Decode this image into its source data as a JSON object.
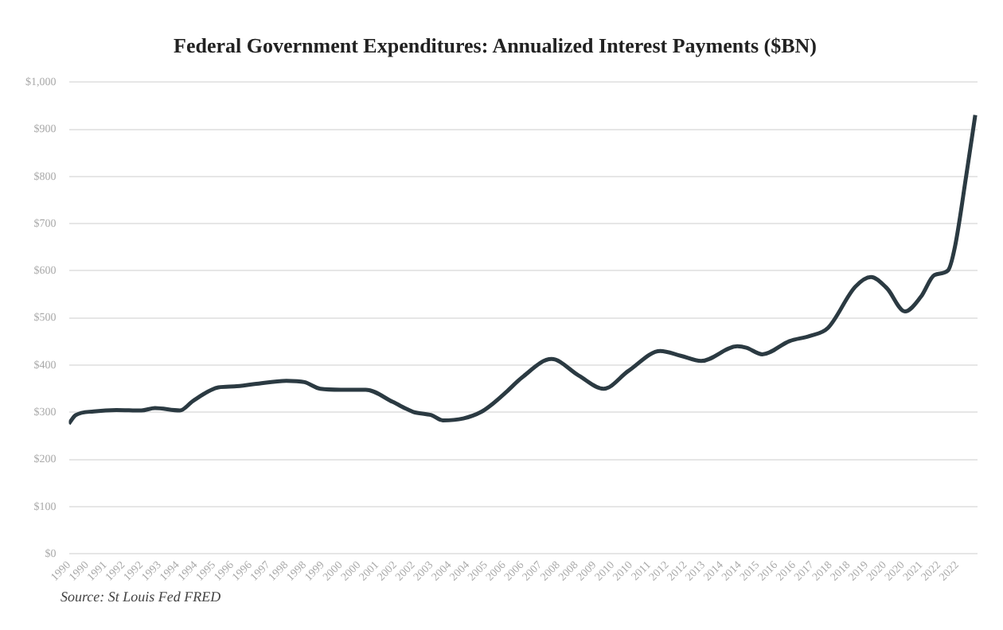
{
  "chart_data": {
    "type": "line",
    "title": "Federal Government Expenditures: Annualized Interest Payments ($BN)",
    "annotations": [
      "Source: St Louis Fed FRED"
    ],
    "x": [
      "1990-01",
      "1990-04",
      "1990-12",
      "1991-10",
      "1992-09",
      "1993-03",
      "1994-02",
      "1994-08",
      "1995-07",
      "1996-02",
      "1996-11",
      "1998-01",
      "1998-09",
      "1999-04",
      "2000-01",
      "2000-12",
      "2001-12",
      "2002-09",
      "2003-05",
      "2003-10",
      "2004-07",
      "2005-03",
      "2005-08",
      "2006-02",
      "2006-09",
      "2007-10",
      "2008-10",
      "2009-09",
      "2010-08",
      "2011-10",
      "2012-07",
      "2013-04",
      "2014-08",
      "2014-12",
      "2015-07",
      "2016-07",
      "2017-04",
      "2017-12",
      "2018-12",
      "2019-07",
      "2020-02",
      "2020-10",
      "2021-05",
      "2021-11",
      "2022-05",
      "2022-08",
      "2023-01",
      "2023-05"
    ],
    "series": [
      {
        "color": "#2b3a42",
        "values": [
          276,
          294,
          302,
          305,
          304,
          309,
          304,
          325,
          353,
          355,
          360,
          367,
          364,
          350,
          348,
          348,
          322,
          301,
          294,
          283,
          287,
          301,
          318,
          343,
          374,
          413,
          378,
          350,
          388,
          430,
          420,
          409,
          440,
          437,
          423,
          451,
          462,
          479,
          566,
          587,
          563,
          514,
          545,
          591,
          601,
          650,
          801,
          930
        ]
      }
    ],
    "xlim": [
      "1990-01",
      "2023-06"
    ],
    "xticks": [
      {
        "value": "1990-01",
        "label": "1990"
      },
      {
        "value": "1990-09",
        "label": "1990"
      },
      {
        "value": "1991-05",
        "label": "1991"
      },
      {
        "value": "1992-01",
        "label": "1992"
      },
      {
        "value": "1992-09",
        "label": "1992"
      },
      {
        "value": "1993-05",
        "label": "1993"
      },
      {
        "value": "1994-01",
        "label": "1994"
      },
      {
        "value": "1994-09",
        "label": "1994"
      },
      {
        "value": "1995-05",
        "label": "1995"
      },
      {
        "value": "1996-01",
        "label": "1996"
      },
      {
        "value": "1996-09",
        "label": "1996"
      },
      {
        "value": "1997-05",
        "label": "1997"
      },
      {
        "value": "1998-01",
        "label": "1998"
      },
      {
        "value": "1998-09",
        "label": "1998"
      },
      {
        "value": "1999-05",
        "label": "1999"
      },
      {
        "value": "2000-01",
        "label": "2000"
      },
      {
        "value": "2000-09",
        "label": "2000"
      },
      {
        "value": "2001-05",
        "label": "2001"
      },
      {
        "value": "2002-01",
        "label": "2002"
      },
      {
        "value": "2002-09",
        "label": "2002"
      },
      {
        "value": "2003-05",
        "label": "2003"
      },
      {
        "value": "2004-01",
        "label": "2004"
      },
      {
        "value": "2004-09",
        "label": "2004"
      },
      {
        "value": "2005-05",
        "label": "2005"
      },
      {
        "value": "2006-01",
        "label": "2006"
      },
      {
        "value": "2006-09",
        "label": "2006"
      },
      {
        "value": "2007-05",
        "label": "2007"
      },
      {
        "value": "2008-01",
        "label": "2008"
      },
      {
        "value": "2008-09",
        "label": "2008"
      },
      {
        "value": "2009-05",
        "label": "2009"
      },
      {
        "value": "2010-01",
        "label": "2010"
      },
      {
        "value": "2010-09",
        "label": "2010"
      },
      {
        "value": "2011-05",
        "label": "2011"
      },
      {
        "value": "2012-01",
        "label": "2012"
      },
      {
        "value": "2012-09",
        "label": "2012"
      },
      {
        "value": "2013-05",
        "label": "2013"
      },
      {
        "value": "2014-01",
        "label": "2014"
      },
      {
        "value": "2014-09",
        "label": "2014"
      },
      {
        "value": "2015-05",
        "label": "2015"
      },
      {
        "value": "2016-01",
        "label": "2016"
      },
      {
        "value": "2016-09",
        "label": "2016"
      },
      {
        "value": "2017-05",
        "label": "2017"
      },
      {
        "value": "2018-01",
        "label": "2018"
      },
      {
        "value": "2018-09",
        "label": "2018"
      },
      {
        "value": "2019-05",
        "label": "2019"
      },
      {
        "value": "2020-01",
        "label": "2020"
      },
      {
        "value": "2020-09",
        "label": "2020"
      },
      {
        "value": "2021-05",
        "label": "2021"
      },
      {
        "value": "2022-01",
        "label": "2022"
      },
      {
        "value": "2022-09",
        "label": "2022"
      }
    ],
    "ylim": [
      0,
      1000
    ],
    "yticks": [
      {
        "value": 0,
        "label": "$0"
      },
      {
        "value": 100,
        "label": "$100"
      },
      {
        "value": 200,
        "label": "$200"
      },
      {
        "value": 300,
        "label": "$300"
      },
      {
        "value": 400,
        "label": "$400"
      },
      {
        "value": 500,
        "label": "$500"
      },
      {
        "value": 600,
        "label": "$600"
      },
      {
        "value": 700,
        "label": "$700"
      },
      {
        "value": 800,
        "label": "$800"
      },
      {
        "value": 900,
        "label": "$900"
      },
      {
        "value": 1000,
        "label": "$1,000"
      }
    ],
    "grid": "y",
    "legend": false,
    "marker": "none",
    "line_style": "solid"
  }
}
